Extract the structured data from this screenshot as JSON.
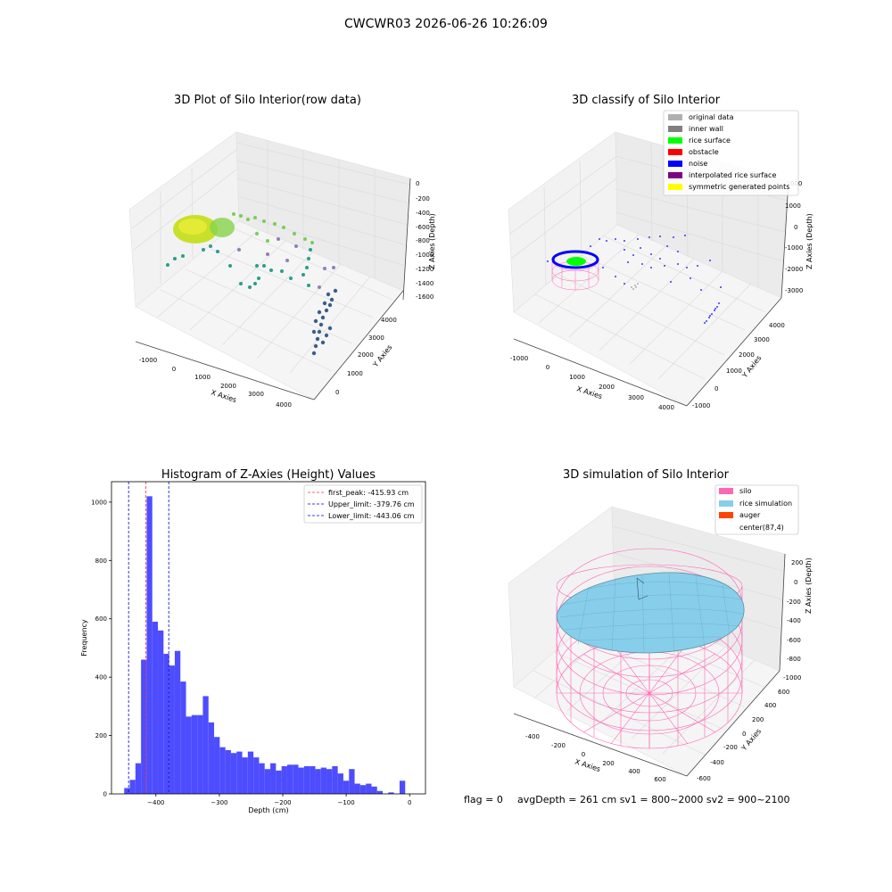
{
  "suptitle": "CWCWR03 2026-06-26 10:26:09",
  "footer": {
    "flag": "flag = 0",
    "stats": "avgDepth = 261 cm  sv1 = 800~2000  sv2 = 900~2100"
  },
  "colors": {
    "hist_bar": "#4d4dff",
    "first_peak": "#ff3030",
    "limit_line": "#0000cc",
    "grid": "#dddddd",
    "silo": "#ff66b3",
    "rice": "#87ceeb",
    "auger": "#ff4500",
    "original": "#b0b0b0",
    "inner_wall": "#808080",
    "rice_surface": "#00ff00",
    "obstacle": "#ff0000",
    "noise": "#0000ff",
    "interpolated": "#800080",
    "symmetric": "#ffff00"
  },
  "panels": {
    "raw": {
      "title": "3D Plot of Silo Interior(row data)",
      "xlabel": "X Axies",
      "ylabel": "Y Axies",
      "zlabel": "Z Axies (Depth)",
      "xticks": [
        "-1000",
        "0",
        "1000",
        "2000",
        "3000",
        "4000"
      ],
      "yticks": [
        "0",
        "1000",
        "2000",
        "3000",
        "4000"
      ],
      "zticks": [
        "0",
        "-200",
        "-400",
        "-600",
        "-800",
        "-1000",
        "-1200",
        "-1400",
        "-1600"
      ]
    },
    "classify": {
      "title": "3D classify of Silo Interior",
      "xlabel": "X Axies",
      "ylabel": "Y Axies",
      "zlabel": "Z Axies (Depth)",
      "xticks": [
        "-1000",
        "0",
        "1000",
        "2000",
        "3000",
        "4000"
      ],
      "yticks": [
        "-1000",
        "0",
        "1000",
        "2000",
        "3000",
        "4000"
      ],
      "zticks": [
        "1000",
        "0",
        "-1000",
        "-2000",
        "-3000"
      ],
      "ztop_label": "000",
      "legend": [
        {
          "label": "original data",
          "color": "#b0b0b0"
        },
        {
          "label": "inner wall",
          "color": "#808080"
        },
        {
          "label": "rice surface",
          "color": "#00ff00"
        },
        {
          "label": "obstacle",
          "color": "#ff0000"
        },
        {
          "label": "noise",
          "color": "#0000ff"
        },
        {
          "label": "interpolated rice surface",
          "color": "#800080"
        },
        {
          "label": "symmetric generated points",
          "color": "#ffff00"
        }
      ]
    },
    "simulation": {
      "title": "3D simulation of Silo Interior",
      "xlabel": "X Axies",
      "ylabel": "Y Axies",
      "zlabel": "Z Axies (Depth)",
      "xticks": [
        "-400",
        "-200",
        "0",
        "200",
        "400",
        "600"
      ],
      "yticks": [
        "-600",
        "-400",
        "-200",
        "0",
        "200",
        "400",
        "600"
      ],
      "zticks": [
        "200",
        "0",
        "-200",
        "-400",
        "-600",
        "-800",
        "-1000"
      ],
      "legend": [
        {
          "label": "silo",
          "color": "#ff66b3"
        },
        {
          "label": "rice simulation",
          "color": "#87ceeb"
        },
        {
          "label": "auger",
          "color": "#ff4500"
        },
        {
          "label": "center(87,4)",
          "color": ""
        }
      ]
    }
  },
  "chart_data": [
    {
      "type": "bar",
      "title": "Histogram of Z-Axies (Height) Values",
      "xlabel": "Depth (cm)",
      "ylabel": "Frequency",
      "xlim": [
        -470,
        25
      ],
      "ylim": [
        0,
        1070
      ],
      "xticks": [
        -400,
        -300,
        -200,
        -100,
        0
      ],
      "yticks": [
        0,
        200,
        400,
        600,
        800,
        1000
      ],
      "bin_width": 8.86,
      "bin_start": -450.0,
      "values": [
        20,
        48,
        105,
        460,
        1020,
        590,
        560,
        480,
        440,
        490,
        385,
        265,
        270,
        270,
        335,
        245,
        195,
        160,
        150,
        140,
        145,
        125,
        145,
        125,
        105,
        85,
        105,
        80,
        95,
        100,
        100,
        90,
        95,
        95,
        85,
        90,
        85,
        95,
        70,
        45,
        85,
        35,
        30,
        35,
        25,
        10,
        0,
        5,
        0,
        45
      ],
      "lines": [
        {
          "name": "first_peak: -415.93 cm",
          "x": -415.93,
          "style": "red"
        },
        {
          "name": "Upper_limit: -379.76 cm",
          "x": -379.76,
          "style": "blue"
        },
        {
          "name": "Lower_limit: -443.06 cm",
          "x": -443.06,
          "style": "blue"
        }
      ],
      "legend_position": "top-right"
    }
  ]
}
